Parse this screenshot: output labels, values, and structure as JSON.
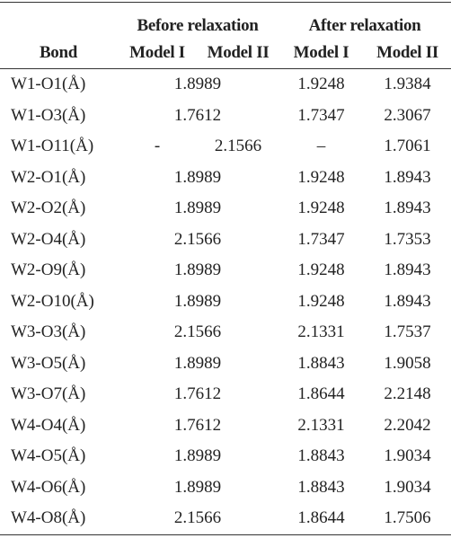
{
  "table": {
    "group_headers": [
      "Before relaxation",
      "After relaxation"
    ],
    "columns": [
      "Bond",
      "Model I",
      "Model II",
      "Model I",
      "Model II"
    ],
    "rows": [
      {
        "bond": "W1-O1(Å)",
        "before": [
          "1.8989"
        ],
        "after": [
          "1.9248",
          "1.9384"
        ]
      },
      {
        "bond": "W1-O3(Å)",
        "before": [
          "1.7612"
        ],
        "after": [
          "1.7347",
          "2.3067"
        ]
      },
      {
        "bond": "W1-O11(Å)",
        "before": [
          "-",
          "2.1566"
        ],
        "after": [
          "–",
          "1.7061"
        ]
      },
      {
        "bond": "W2-O1(Å)",
        "before": [
          "1.8989"
        ],
        "after": [
          "1.9248",
          "1.8943"
        ]
      },
      {
        "bond": "W2-O2(Å)",
        "before": [
          "1.8989"
        ],
        "after": [
          "1.9248",
          "1.8943"
        ]
      },
      {
        "bond": "W2-O4(Å)",
        "before": [
          "2.1566"
        ],
        "after": [
          "1.7347",
          "1.7353"
        ]
      },
      {
        "bond": "W2-O9(Å)",
        "before": [
          "1.8989"
        ],
        "after": [
          "1.9248",
          "1.8943"
        ]
      },
      {
        "bond": "W2-O10(Å)",
        "before": [
          "1.8989"
        ],
        "after": [
          "1.9248",
          "1.8943"
        ]
      },
      {
        "bond": "W3-O3(Å)",
        "before": [
          "2.1566"
        ],
        "after": [
          "2.1331",
          "1.7537"
        ]
      },
      {
        "bond": "W3-O5(Å)",
        "before": [
          "1.8989"
        ],
        "after": [
          "1.8843",
          "1.9058"
        ]
      },
      {
        "bond": "W3-O7(Å)",
        "before": [
          "1.7612"
        ],
        "after": [
          "1.8644",
          "2.2148"
        ]
      },
      {
        "bond": "W4-O4(Å)",
        "before": [
          "1.7612"
        ],
        "after": [
          "2.1331",
          "2.2042"
        ]
      },
      {
        "bond": "W4-O5(Å)",
        "before": [
          "1.8989"
        ],
        "after": [
          "1.8843",
          "1.9034"
        ]
      },
      {
        "bond": "W4-O6(Å)",
        "before": [
          "1.8989"
        ],
        "after": [
          "1.8843",
          "1.9034"
        ]
      },
      {
        "bond": "W4-O8(Å)",
        "before": [
          "2.1566"
        ],
        "after": [
          "1.8644",
          "1.7506"
        ]
      }
    ]
  }
}
